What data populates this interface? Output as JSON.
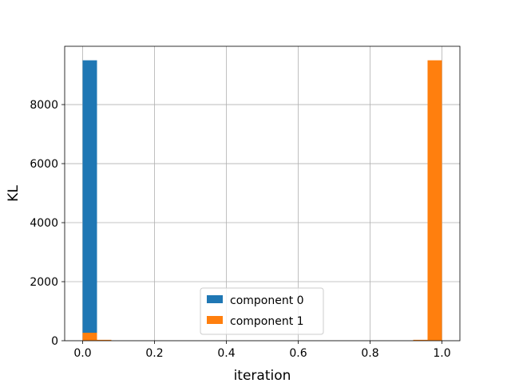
{
  "chart_data": {
    "type": "bar",
    "title": "",
    "xlabel": "iteration",
    "ylabel": "KL",
    "xlim": [
      -0.05,
      1.05
    ],
    "ylim": [
      0,
      9975
    ],
    "x_ticks": [
      0.0,
      0.2,
      0.4,
      0.6,
      0.8,
      1.0
    ],
    "x_tick_labels": [
      "0.0",
      "0.2",
      "0.4",
      "0.6",
      "0.8",
      "1.0"
    ],
    "y_ticks": [
      0,
      2000,
      4000,
      6000,
      8000
    ],
    "y_tick_labels": [
      "0",
      "2000",
      "4000",
      "6000",
      "8000"
    ],
    "grid": true,
    "legend_placement": "lower center",
    "bin_width": 0.04,
    "series": [
      {
        "name": "component 0",
        "color": "#1f77b4",
        "bins": [
          {
            "x_start": 0.0,
            "value": 9500
          }
        ]
      },
      {
        "name": "component 1",
        "color": "#ff7f0e",
        "bins": [
          {
            "x_start": 0.0,
            "value": 270
          },
          {
            "x_start": 0.04,
            "value": 30
          },
          {
            "x_start": 0.92,
            "value": 30
          },
          {
            "x_start": 0.96,
            "value": 9500
          }
        ]
      }
    ]
  }
}
